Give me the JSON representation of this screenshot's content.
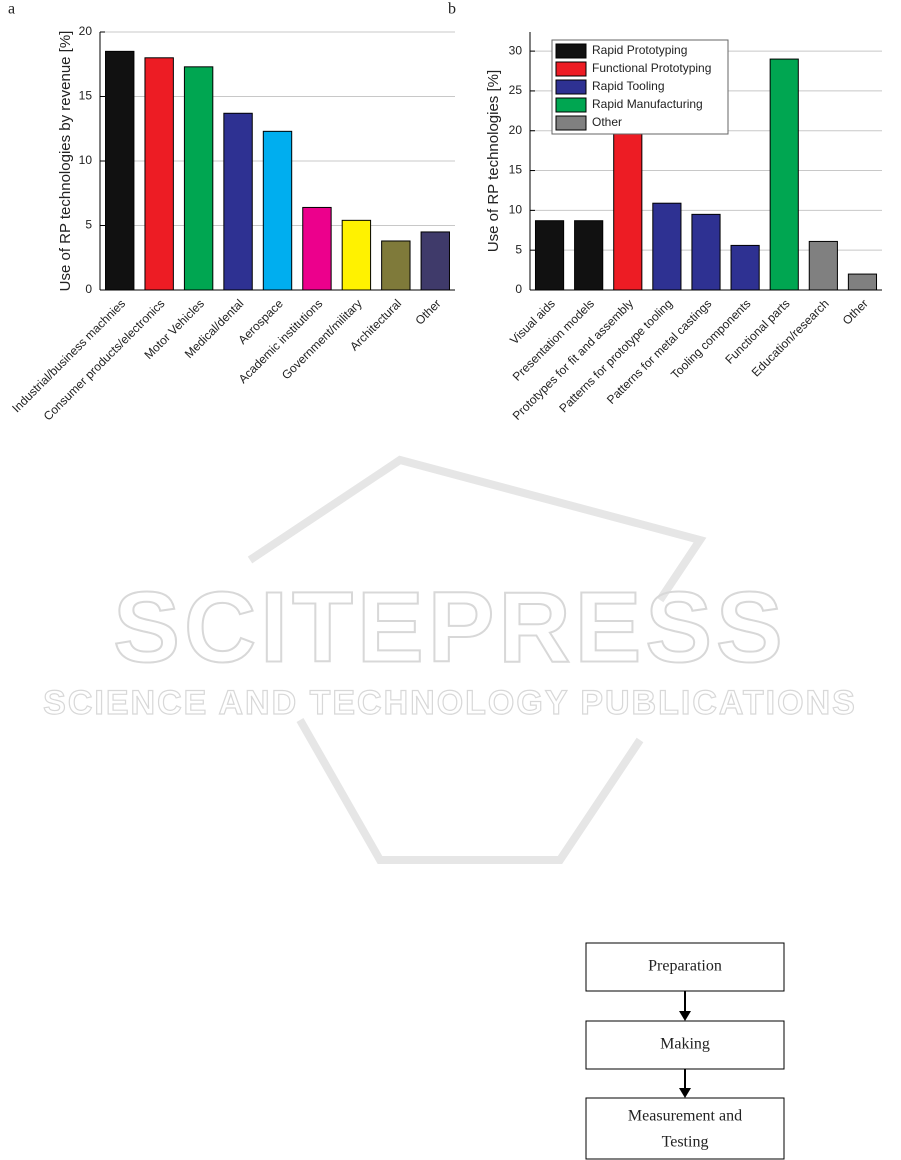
{
  "chart_data": [
    {
      "type": "bar",
      "panel": "a",
      "ylabel": "Use of RP technologies by revenue [%]",
      "categories": [
        "Industrial/business machnies",
        "Consumer products/electronics",
        "Motor Vehicles",
        "Medical/dental",
        "Aerospace",
        "Academic institutions",
        "Government/military",
        "Architectural",
        "Other"
      ],
      "values": [
        18.5,
        18.0,
        17.3,
        13.7,
        12.3,
        6.4,
        5.4,
        3.8,
        4.5
      ],
      "colors": [
        "#111111",
        "#ed1c24",
        "#00a651",
        "#2e3192",
        "#00aeef",
        "#ec008c",
        "#fff200",
        "#7f7a3a",
        "#3f3a6a"
      ],
      "ylim": [
        0,
        20
      ],
      "yticks": [
        0,
        5,
        10,
        15,
        20
      ],
      "grid": true
    },
    {
      "type": "bar",
      "panel": "b",
      "ylabel": "Use of RP technologies [%]",
      "categories": [
        "Visual aids",
        "Presentation models",
        "Prototypes for fit and assembly",
        "Patterns for prototype tooling",
        "Patterns for metal castings",
        "Tooling components",
        "Functional parts",
        "Education/research",
        "Other"
      ],
      "values": [
        8.7,
        8.7,
        19.6,
        10.9,
        9.5,
        5.6,
        29,
        6.1,
        2.0
      ],
      "colors": [
        "#111111",
        "#111111",
        "#ed1c24",
        "#2e3192",
        "#2e3192",
        "#2e3192",
        "#00a651",
        "#808080",
        "#808080"
      ],
      "legend": [
        {
          "name": "Rapid Prototyping",
          "color": "#111111"
        },
        {
          "name": "Functional Prototyping",
          "color": "#ed1c24"
        },
        {
          "name": "Rapid Tooling",
          "color": "#2e3192"
        },
        {
          "name": "Rapid Manufacturing",
          "color": "#00a651"
        },
        {
          "name": "Other",
          "color": "#808080"
        }
      ],
      "legend_position": "upper left",
      "ylim": [
        0,
        32.4
      ],
      "yticks": [
        0,
        5,
        10,
        15,
        20,
        25,
        30
      ],
      "grid": true
    }
  ],
  "watermark": {
    "title": "SCITEPRESS",
    "subtitle": "SCIENCE AND TECHNOLOGY PUBLICATIONS"
  },
  "flowchart": {
    "nodes": [
      {
        "label": "Preparation"
      },
      {
        "label": "Making"
      },
      {
        "label": "Measurement and Testing",
        "lines": [
          "Measurement and",
          "Testing"
        ]
      }
    ]
  }
}
